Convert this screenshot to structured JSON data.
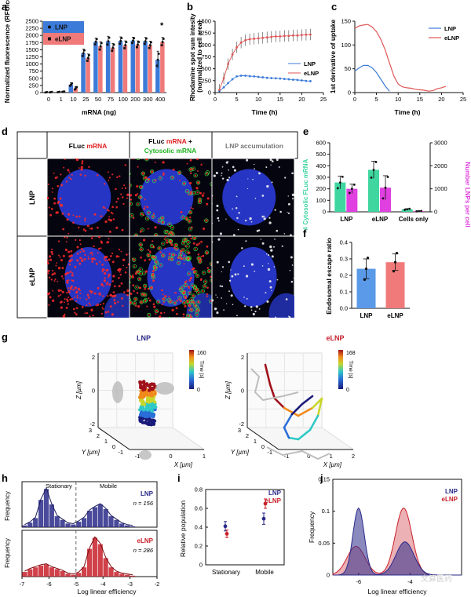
{
  "panel_labels": [
    "a",
    "b",
    "c",
    "d",
    "e",
    "f",
    "g",
    "h",
    "i",
    "j"
  ],
  "colors": {
    "lnp": "#3d7bd9",
    "elnp": "#e05555",
    "lnp_light": "#5a9ae8",
    "elnp_light": "#f07a7a",
    "cyto": "#3fd6a0",
    "magenta": "#e040e0",
    "navy": "#2a2a8a",
    "crimson": "#c8202a"
  },
  "watermark": "文算医药",
  "chart_data": [
    {
      "id": "a",
      "type": "bar",
      "ylabel": "Normalized fluorescence (RFU/cell)",
      "xlabel": "mRNA (ng)",
      "categories": [
        "0",
        "1",
        "10",
        "25",
        "50",
        "75",
        "100",
        "200",
        "300",
        "400"
      ],
      "ylim": [
        0,
        2500
      ],
      "yticks": [
        "0",
        "250",
        "500",
        "750",
        "1000",
        "1250",
        "1500",
        "1750",
        "2000",
        "2250",
        "2500"
      ],
      "series": [
        {
          "name": "LNP",
          "values": [
            10,
            20,
            280,
            1380,
            1780,
            1800,
            1810,
            1820,
            1800,
            1150
          ],
          "err": [
            10,
            10,
            60,
            140,
            130,
            170,
            140,
            120,
            130,
            300
          ]
        },
        {
          "name": "eLNP",
          "values": [
            15,
            30,
            150,
            1210,
            1620,
            1570,
            1660,
            1680,
            1660,
            1770
          ],
          "err": [
            10,
            10,
            60,
            140,
            160,
            150,
            150,
            130,
            140,
            160
          ]
        }
      ],
      "annotation": "*"
    },
    {
      "id": "b",
      "type": "line",
      "ylabel": "Rhodamine spot sum intensity (normalized to cell area)",
      "xlabel": "Time (h)",
      "xlim": [
        0,
        25
      ],
      "ylim": [
        0,
        1500
      ],
      "xticks": [
        "0",
        "5",
        "10",
        "15",
        "20",
        "25"
      ],
      "yticks": [
        "0",
        "250",
        "500",
        "750",
        "1000",
        "1250",
        "1500"
      ],
      "series": [
        {
          "name": "LNP",
          "x": [
            1,
            2,
            3,
            4,
            5,
            6,
            7,
            8,
            9,
            10,
            11,
            12,
            13,
            14,
            15,
            16,
            17,
            18,
            19,
            20,
            21,
            22
          ],
          "y": [
            30,
            110,
            200,
            280,
            340,
            355,
            355,
            345,
            340,
            330,
            320,
            310,
            305,
            300,
            295,
            285,
            280,
            270,
            265,
            255,
            245,
            240
          ]
        },
        {
          "name": "eLNP",
          "x": [
            1,
            2,
            3,
            4,
            5,
            6,
            7,
            8,
            9,
            10,
            11,
            12,
            13,
            14,
            15,
            16,
            17,
            18,
            19,
            20,
            21,
            22
          ],
          "y": [
            60,
            300,
            600,
            800,
            950,
            1050,
            1100,
            1120,
            1130,
            1140,
            1150,
            1160,
            1170,
            1180,
            1180,
            1190,
            1190,
            1200,
            1200,
            1210,
            1215,
            1220
          ]
        }
      ]
    },
    {
      "id": "c",
      "type": "line",
      "ylabel": "1st derivative of uptake",
      "xlabel": "Time (h)",
      "xlim": [
        0,
        25
      ],
      "ylim": [
        0,
        150
      ],
      "xticks": [
        "0",
        "5",
        "10",
        "15",
        "20",
        "25"
      ],
      "yticks": [
        "0",
        "50",
        "100",
        "150"
      ],
      "series": [
        {
          "name": "LNP",
          "x": [
            0,
            1,
            2,
            3,
            4,
            5,
            6,
            7,
            8
          ],
          "y": [
            45,
            52,
            57,
            57,
            52,
            42,
            28,
            14,
            3
          ]
        },
        {
          "name": "eLNP",
          "x": [
            0,
            1,
            2,
            3,
            4,
            5,
            6,
            7,
            8,
            9,
            10,
            11,
            12,
            13,
            14,
            15,
            16,
            17,
            18,
            19,
            20,
            21
          ],
          "y": [
            135,
            140,
            142,
            143,
            138,
            128,
            112,
            90,
            62,
            35,
            18,
            12,
            10,
            9,
            7,
            6,
            5,
            3,
            4,
            8,
            10,
            13
          ]
        }
      ]
    },
    {
      "id": "e",
      "type": "bar",
      "ylabel_left": "# Cytosolic FLuc mRNA",
      "ylabel_right": "Number LNPs per cell",
      "categories": [
        "LNP",
        "eLNP",
        "Cells only"
      ],
      "ylim_left": [
        0,
        600
      ],
      "yticks_left": [
        "0",
        "100",
        "200",
        "300",
        "400",
        "500",
        "600"
      ],
      "ylim_right": [
        0,
        3000
      ],
      "yticks_right": [
        "0",
        "1000",
        "2000",
        "3000"
      ],
      "series": [
        {
          "name": "Cytosolic FLuc mRNA",
          "values": [
            255,
            365,
            22
          ],
          "err": [
            55,
            75,
            5
          ]
        },
        {
          "name": "LNPs per cell",
          "values": [
            1000,
            1050,
            30
          ],
          "err": [
            200,
            520,
            10
          ]
        }
      ]
    },
    {
      "id": "f",
      "type": "bar",
      "ylabel": "Endosomal escape ratio",
      "categories": [
        "LNP",
        "eLNP"
      ],
      "ylim": [
        0,
        0.4
      ],
      "yticks": [
        "0.0",
        "0.1",
        "0.2",
        "0.3",
        "0.4"
      ],
      "values": [
        0.24,
        0.28
      ],
      "err": [
        0.06,
        0.05
      ]
    },
    {
      "id": "h",
      "type": "bar",
      "xlabel": "Log linear efficiency",
      "ylabel": "Frequency",
      "xlim": [
        -7,
        -2
      ],
      "xticks": [
        "-7",
        "-6",
        "-5",
        "-4",
        "-3",
        "-2"
      ],
      "region_labels": [
        "Stationary",
        "Mobile"
      ],
      "threshold": -5.0,
      "series": [
        {
          "name": "LNP",
          "n_label": "n = 156",
          "bins": [
            -6.9,
            -6.7,
            -6.5,
            -6.3,
            -6.1,
            -5.9,
            -5.7,
            -5.5,
            -5.3,
            -5.1,
            -4.9,
            -4.7,
            -4.5,
            -4.3,
            -4.1,
            -3.9,
            -3.7,
            -3.5,
            -3.3,
            -3.1,
            -2.9
          ],
          "values": [
            0.02,
            0.05,
            0.1,
            0.3,
            0.42,
            0.25,
            0.12,
            0.08,
            0.04,
            0.03,
            0.06,
            0.1,
            0.18,
            0.22,
            0.25,
            0.2,
            0.12,
            0.08,
            0.04,
            0.02,
            0.01
          ]
        },
        {
          "name": "eLNP",
          "n_label": "n = 286",
          "bins": [
            -6.9,
            -6.7,
            -6.5,
            -6.3,
            -6.1,
            -5.9,
            -5.7,
            -5.5,
            -5.3,
            -5.1,
            -4.9,
            -4.7,
            -4.5,
            -4.3,
            -4.1,
            -3.9,
            -3.7,
            -3.5,
            -3.3,
            -3.1,
            -2.9
          ],
          "values": [
            0.05,
            0.08,
            0.1,
            0.12,
            0.13,
            0.1,
            0.08,
            0.06,
            0.03,
            0.02,
            0.04,
            0.1,
            0.3,
            0.42,
            0.35,
            0.2,
            0.1,
            0.05,
            0.03,
            0.02,
            0.01
          ]
        }
      ]
    },
    {
      "id": "i",
      "type": "scatter",
      "ylabel": "Relative population",
      "categories": [
        "Stationary",
        "Mobile"
      ],
      "ylim": [
        0,
        0.8
      ],
      "yticks": [
        "0",
        "0.2",
        "0.4",
        "0.6",
        "0.8"
      ],
      "series": [
        {
          "name": "LNP",
          "values": [
            0.41,
            0.49
          ],
          "err": [
            0.05,
            0.06
          ]
        },
        {
          "name": "eLNP",
          "values": [
            0.33,
            0.65
          ],
          "err": [
            0.04,
            0.05
          ]
        }
      ]
    },
    {
      "id": "j",
      "type": "area",
      "xlabel": "Log linear efficiency",
      "ylabel": "Frequency",
      "xlim": [
        -7,
        -2
      ],
      "xticks": [
        "-6",
        "-4"
      ],
      "ylim": [
        0,
        0.15
      ],
      "yticks": [
        "0",
        "0.05",
        "0.1",
        "0.15"
      ],
      "series": [
        {
          "name": "LNP",
          "peaks": [
            {
              "mu": -6.0,
              "sigma": 0.22,
              "h": 0.105
            },
            {
              "mu": -4.2,
              "sigma": 0.35,
              "h": 0.052
            }
          ]
        },
        {
          "name": "eLNP",
          "peaks": [
            {
              "mu": -6.1,
              "sigma": 0.35,
              "h": 0.045
            },
            {
              "mu": -4.25,
              "sigma": 0.32,
              "h": 0.105
            }
          ]
        }
      ]
    }
  ],
  "panel_d": {
    "col_headers": [
      {
        "parts": [
          {
            "t": "FLuc ",
            "c": "black"
          },
          {
            "t": "mRNA",
            "c": "red"
          }
        ]
      },
      {
        "parts": [
          {
            "t": "FLuc ",
            "c": "black"
          },
          {
            "t": "mRNA",
            "c": "red"
          },
          {
            "t": " +",
            "c": "black"
          }
        ],
        "line2": "Cytosolic mRNA"
      },
      {
        "parts": [
          {
            "t": "LNP accumulation",
            "c": "grey"
          }
        ]
      }
    ],
    "row_headers": [
      "LNP",
      "eLNP"
    ]
  },
  "panel_g": {
    "left_title": "LNP",
    "right_title": "eLNP",
    "left_time_max": "160",
    "right_time_max": "168",
    "time_label": "Time [s]",
    "time_min": "0",
    "zlabel": "Z [µm]",
    "ylabel": "Y [µm]",
    "xlabel": "X [µm]",
    "left_z_ticks": [
      "2",
      "0",
      "-2"
    ],
    "left_y_ticks": [
      "3",
      "2",
      "1",
      "0",
      "-1"
    ],
    "left_x_ticks": [
      "-1",
      "0",
      "1"
    ],
    "right_z_ticks": [
      "2",
      "0",
      "-2"
    ],
    "right_y_ticks": [
      "3",
      "2",
      "1",
      "0",
      "-1"
    ],
    "right_x_ticks": [
      "-1",
      "0",
      "1",
      "2"
    ]
  }
}
